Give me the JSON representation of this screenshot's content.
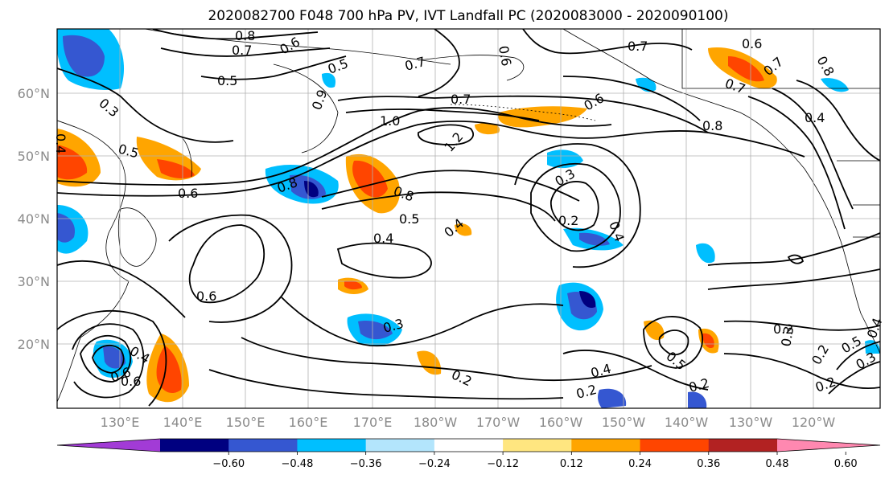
{
  "title": "2020082700 F048 700 hPa PV, IVT Landfall PC (2020083000 - 2020090100)",
  "axes": {
    "lat_labels": [
      "60°N",
      "50°N",
      "40°N",
      "30°N",
      "20°N"
    ],
    "lon_labels": [
      "130°E",
      "140°E",
      "150°E",
      "160°E",
      "170°E",
      "180°W",
      "170°W",
      "160°W",
      "150°W",
      "140°W",
      "130°W",
      "120°W"
    ],
    "grid": true
  },
  "colorbar": {
    "colors": [
      "#a23bd6",
      "#000080",
      "#3557d1",
      "#00bfff",
      "#b3e5fc",
      "#ffffff",
      "#ffe680",
      "#ffa500",
      "#ff4500",
      "#b22222",
      "#ff88b0"
    ],
    "ticks": [
      "−0.60",
      "−0.48",
      "−0.36",
      "−0.24",
      "−0.12",
      "0.12",
      "0.24",
      "0.36",
      "0.48",
      "0.60"
    ]
  },
  "contour_labels": [
    "0.8",
    "0.7",
    "0.6",
    "0.5",
    "0.5",
    "0.3",
    "0.9",
    "0.7",
    "0.7",
    "0.6",
    "0.7",
    "0.6",
    "0.8",
    "0.7",
    "0.7",
    "0.6",
    "1.0",
    "0.8",
    "1.2",
    "0.4",
    "0.8",
    "0.5",
    "0.6",
    "0.4",
    "0.5",
    "0.8",
    "0.4",
    "0.3",
    "0.2",
    "0.4",
    "0.4",
    "0.6",
    "0.4",
    "0.3",
    "0.2",
    "0.6",
    "0.4",
    "0.2",
    "0.5",
    "0.2",
    "0.2",
    "0.3",
    "0.2",
    "0.5",
    "0.3",
    "0.2",
    "0.4",
    "0.6"
  ]
}
